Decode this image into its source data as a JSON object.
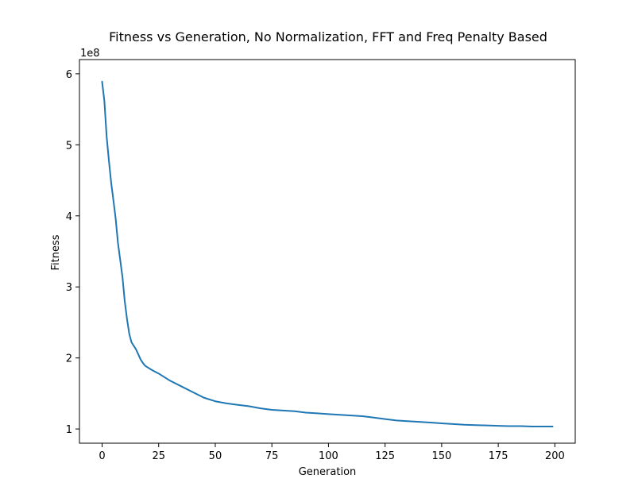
{
  "chart_data": {
    "type": "line",
    "title": "Fitness vs Generation, No Normalization, FFT and Freq Penalty Based",
    "xlabel": "Generation",
    "ylabel": "Fitness",
    "y_offset_label": "1e8",
    "xlim": [
      -10,
      209
    ],
    "ylim": [
      0.8,
      6.2
    ],
    "x_ticks": [
      0,
      25,
      50,
      75,
      100,
      125,
      150,
      175,
      200
    ],
    "x_tick_labels": [
      "0",
      "25",
      "50",
      "75",
      "100",
      "125",
      "150",
      "175",
      "200"
    ],
    "y_ticks": [
      1,
      2,
      3,
      4,
      5,
      6
    ],
    "y_tick_labels": [
      "1",
      "2",
      "3",
      "4",
      "5",
      "6"
    ],
    "grid": false,
    "series": [
      {
        "color": "#1f77b4",
        "x": [
          0,
          1,
          2,
          3,
          4,
          5,
          6,
          7,
          8,
          9,
          10,
          11,
          12,
          13,
          14,
          15,
          16,
          17,
          18,
          19,
          20,
          22,
          25,
          28,
          30,
          35,
          40,
          45,
          50,
          55,
          60,
          65,
          70,
          75,
          80,
          85,
          90,
          95,
          100,
          105,
          110,
          115,
          120,
          125,
          130,
          135,
          140,
          145,
          150,
          155,
          160,
          165,
          170,
          175,
          180,
          185,
          190,
          195,
          199
        ],
        "values": [
          5.89,
          5.62,
          5.12,
          4.78,
          4.47,
          4.22,
          3.96,
          3.62,
          3.38,
          3.14,
          2.8,
          2.55,
          2.34,
          2.22,
          2.17,
          2.12,
          2.05,
          1.98,
          1.93,
          1.89,
          1.87,
          1.83,
          1.78,
          1.72,
          1.68,
          1.6,
          1.52,
          1.44,
          1.39,
          1.36,
          1.34,
          1.32,
          1.29,
          1.27,
          1.26,
          1.25,
          1.23,
          1.22,
          1.21,
          1.2,
          1.19,
          1.18,
          1.16,
          1.14,
          1.12,
          1.11,
          1.1,
          1.09,
          1.08,
          1.07,
          1.06,
          1.055,
          1.05,
          1.045,
          1.04,
          1.04,
          1.035,
          1.035,
          1.035
        ]
      }
    ]
  }
}
